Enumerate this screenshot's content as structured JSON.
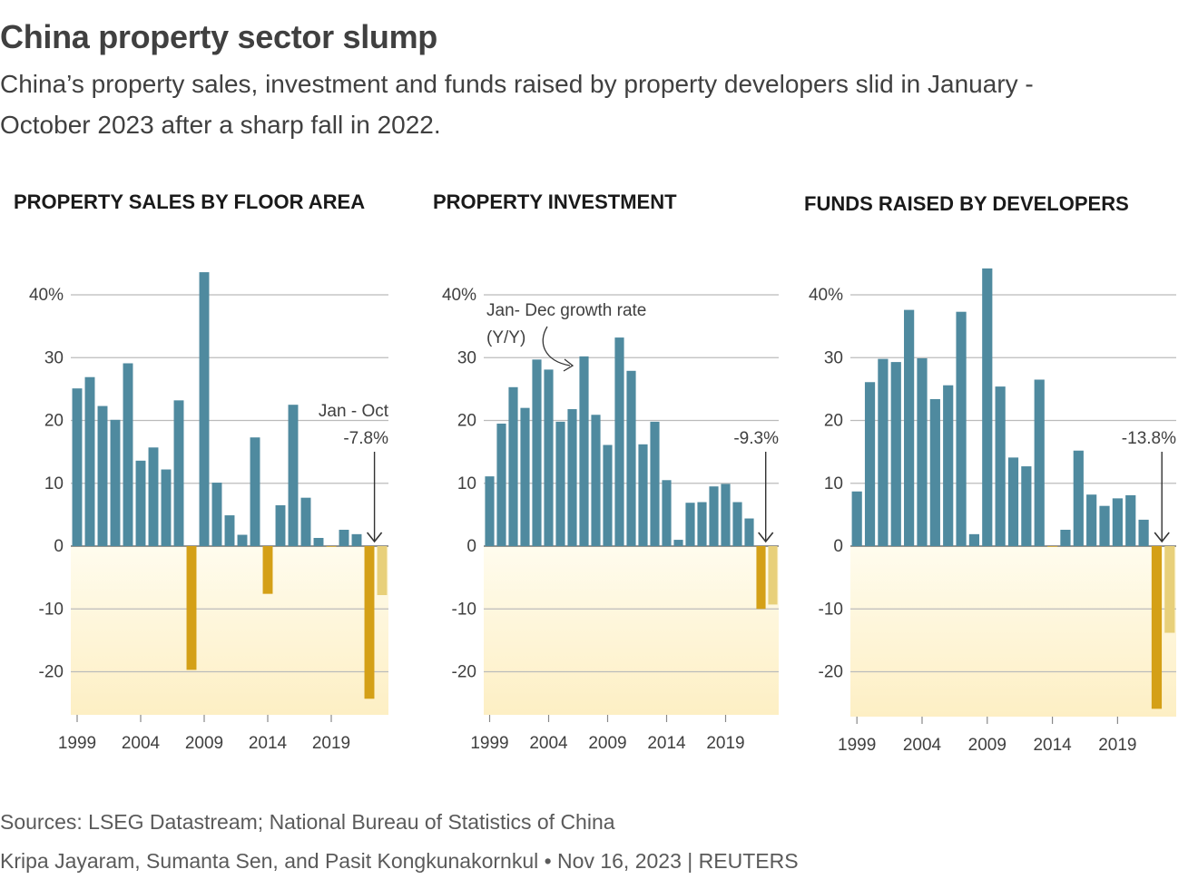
{
  "header": {
    "title": "China property sector slump",
    "subtitle": "China’s property sales, investment and funds raised by property developers slid in January - October 2023 after a sharp fall in 2022."
  },
  "footer": {
    "sources": "Sources: LSEG Datastream; National Bureau of Statistics of China",
    "credit": "Kripa Jayaram, Sumanta Sen, and Pasit Kongkunakornkul • Nov 16, 2023 | REUTERS"
  },
  "colors": {
    "positive": "#4f8a9f",
    "negative": "#d4a017",
    "partial_year": "#e8d07a",
    "shade_top": "#fffcee",
    "shade_bottom": "#fdefc4",
    "grid": "#bbbbbb"
  },
  "chart_data": [
    {
      "type": "bar",
      "title": "PROPERTY SALES BY FLOOR AREA",
      "x": [
        1999,
        2000,
        2001,
        2002,
        2003,
        2004,
        2005,
        2006,
        2007,
        2008,
        2009,
        2010,
        2011,
        2012,
        2013,
        2014,
        2015,
        2016,
        2017,
        2018,
        2019,
        2020,
        2021,
        2022,
        2023
      ],
      "values": [
        25.1,
        26.9,
        22.3,
        20.1,
        29.1,
        13.6,
        15.7,
        12.2,
        23.2,
        -19.7,
        43.6,
        10.1,
        4.9,
        1.8,
        17.3,
        -7.6,
        6.5,
        22.5,
        7.7,
        1.3,
        -0.1,
        2.6,
        1.9,
        -24.3,
        -7.8
      ],
      "partial_last": true,
      "y_ticks": [
        "40%",
        "30",
        "20",
        "10",
        "0",
        "-10",
        "-20"
      ],
      "y_tick_values": [
        40,
        30,
        20,
        10,
        0,
        -10,
        -20
      ],
      "x_ticks": [
        "1999",
        "2004",
        "2009",
        "2014",
        "2019"
      ],
      "x_tick_values": [
        1999,
        2004,
        2009,
        2014,
        2019
      ],
      "ylim": [
        -27,
        45
      ],
      "annotation": {
        "lines": [
          "Jan - Oct",
          "-7.8%"
        ]
      }
    },
    {
      "type": "bar",
      "title": "PROPERTY INVESTMENT",
      "x": [
        1999,
        2000,
        2001,
        2002,
        2003,
        2004,
        2005,
        2006,
        2007,
        2008,
        2009,
        2010,
        2011,
        2012,
        2013,
        2014,
        2015,
        2016,
        2017,
        2018,
        2019,
        2020,
        2021,
        2022,
        2023
      ],
      "values": [
        11.1,
        19.5,
        25.3,
        22.0,
        29.7,
        28.1,
        19.8,
        21.8,
        30.2,
        20.9,
        16.1,
        33.2,
        27.9,
        16.2,
        19.8,
        10.5,
        1.0,
        6.9,
        7.0,
        9.5,
        9.9,
        7.0,
        4.4,
        -10.0,
        -9.3
      ],
      "partial_last": true,
      "y_ticks": [
        "40%",
        "30",
        "20",
        "10",
        "0",
        "-10",
        "-20"
      ],
      "y_tick_values": [
        40,
        30,
        20,
        10,
        0,
        -10,
        -20
      ],
      "x_ticks": [
        "1999",
        "2004",
        "2009",
        "2014",
        "2019"
      ],
      "x_tick_values": [
        1999,
        2004,
        2009,
        2014,
        2019
      ],
      "ylim": [
        -27,
        45
      ],
      "annotation": {
        "lines": [
          "-9.3%"
        ]
      },
      "note": {
        "lines": [
          "Jan- Dec growth rate",
          "(Y/Y)"
        ]
      }
    },
    {
      "type": "bar",
      "title": "FUNDS RAISED BY DEVELOPERS",
      "x": [
        1999,
        2000,
        2001,
        2002,
        2003,
        2004,
        2005,
        2006,
        2007,
        2008,
        2009,
        2010,
        2011,
        2012,
        2013,
        2014,
        2015,
        2016,
        2017,
        2018,
        2019,
        2020,
        2021,
        2022,
        2023
      ],
      "values": [
        8.7,
        26.1,
        29.8,
        29.3,
        37.6,
        29.9,
        23.4,
        25.6,
        37.3,
        1.9,
        44.2,
        25.4,
        14.1,
        12.7,
        26.5,
        -0.1,
        2.6,
        15.2,
        8.2,
        6.4,
        7.6,
        8.1,
        4.2,
        -25.9,
        -13.8
      ],
      "partial_last": true,
      "y_ticks": [
        "40%",
        "30",
        "20",
        "10",
        "0",
        "-10",
        "-20"
      ],
      "y_tick_values": [
        40,
        30,
        20,
        10,
        0,
        -10,
        -20
      ],
      "x_ticks": [
        "1999",
        "2004",
        "2009",
        "2014",
        "2019"
      ],
      "x_tick_values": [
        1999,
        2004,
        2009,
        2014,
        2019
      ],
      "ylim": [
        -27,
        45
      ],
      "annotation": {
        "lines": [
          "-13.8%"
        ]
      }
    }
  ]
}
